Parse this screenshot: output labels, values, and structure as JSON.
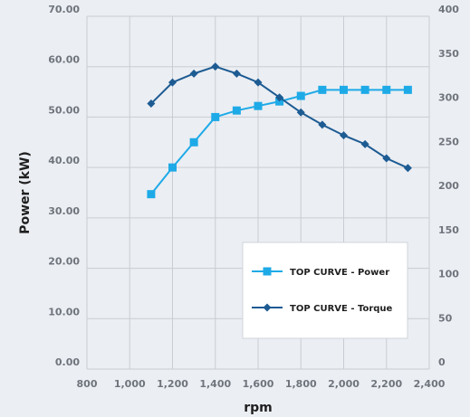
{
  "chart_data": {
    "type": "line",
    "title": "",
    "xlabel": "rpm",
    "ylabel": "Power (kW)",
    "y2label": "",
    "x_ticks": [
      "800",
      "1,000",
      "1,200",
      "1,400",
      "1,600",
      "1,800",
      "2,000",
      "2,200",
      "2,400"
    ],
    "y_ticks": [
      "0.00",
      "10.00",
      "20.00",
      "30.00",
      "40.00",
      "50.00",
      "60.00",
      "70.00"
    ],
    "y2_ticks": [
      "0",
      "50",
      "100",
      "150",
      "200",
      "250",
      "300",
      "350",
      "400"
    ],
    "xlim": [
      800,
      2400
    ],
    "ylim": [
      0,
      70
    ],
    "y2lim": [
      0,
      400
    ],
    "grid": true,
    "legend_position": "center-right",
    "series": [
      {
        "name": "TOP CURVE - Power",
        "axis": "left",
        "color": "#1eaae7",
        "marker": "square",
        "x": [
          1100,
          1200,
          1300,
          1400,
          1500,
          1600,
          1700,
          1800,
          1900,
          2000,
          2100,
          2200,
          2300
        ],
        "values": [
          34.7,
          40.0,
          45.0,
          50.0,
          51.3,
          52.2,
          53.1,
          54.2,
          55.4,
          55.4,
          55.4,
          55.4,
          55.4
        ]
      },
      {
        "name": "TOP CURVE - Torque",
        "axis": "right",
        "color": "#1d5b93",
        "marker": "diamond",
        "x": [
          1100,
          1200,
          1300,
          1400,
          1500,
          1600,
          1700,
          1800,
          1900,
          2000,
          2100,
          2200,
          2300
        ],
        "values": [
          301,
          325,
          335,
          343,
          335,
          325,
          308,
          291,
          277,
          265,
          255,
          239,
          228
        ]
      }
    ]
  }
}
